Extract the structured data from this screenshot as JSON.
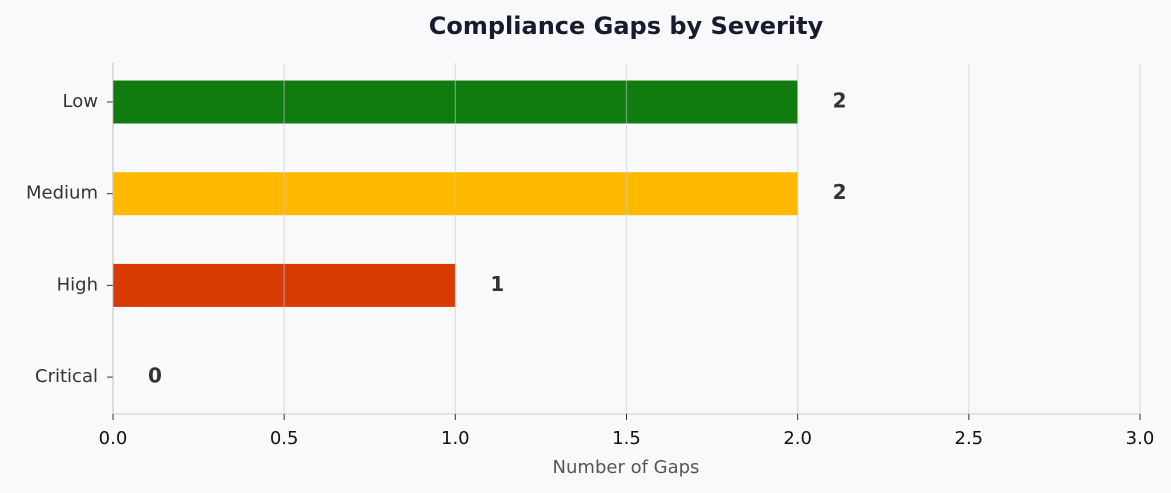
{
  "chart_data": {
    "type": "bar",
    "orientation": "horizontal",
    "title": "Compliance Gaps by Severity",
    "xlabel": "Number of Gaps",
    "categories": [
      "Low",
      "Medium",
      "High",
      "Critical"
    ],
    "values": [
      2,
      2,
      1,
      0
    ],
    "colors": [
      "#107c10",
      "#ffb900",
      "#d83b01",
      "#a4262c"
    ],
    "xlim": [
      0,
      3
    ],
    "xticks": [
      {
        "value": 0,
        "label": "0.0"
      },
      0.5,
      {
        "value": 1,
        "label": "1.0"
      },
      1.5,
      {
        "value": 2,
        "label": "2.0"
      },
      2.5,
      {
        "value": 3,
        "label": "3.0"
      }
    ],
    "grid": true
  }
}
